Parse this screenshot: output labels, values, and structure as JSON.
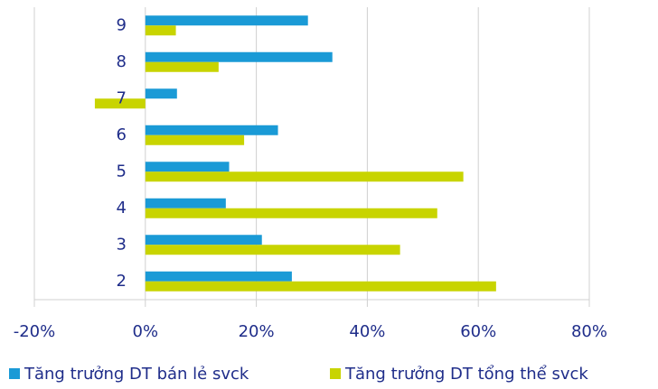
{
  "chart_data": {
    "type": "bar",
    "orientation": "horizontal",
    "categories": [
      "2",
      "3",
      "4",
      "5",
      "6",
      "7",
      "8",
      "9"
    ],
    "series": [
      {
        "name": "Tăng trưởng DT bán lẻ svck",
        "color": "#1a9ad6",
        "values": [
          26.4,
          21,
          14.5,
          15.1,
          23.9,
          5.7,
          33.7,
          29.3
        ]
      },
      {
        "name": "Tăng trưởng DT tổng thể svck",
        "color": "#c8d400",
        "values": [
          63.2,
          45.9,
          52.6,
          57.3,
          17.8,
          -9.1,
          13.2,
          5.5
        ]
      }
    ],
    "xlim": [
      -20,
      80
    ],
    "xticks": [
      {
        "value": -20,
        "label": "-20%"
      },
      {
        "value": 0,
        "label": "0%"
      },
      {
        "value": 20,
        "label": "20%"
      },
      {
        "value": 40,
        "label": "40%"
      },
      {
        "value": 60,
        "label": "60%"
      },
      {
        "value": 80,
        "label": "80%"
      }
    ],
    "grid": true,
    "legend": "bottom"
  }
}
